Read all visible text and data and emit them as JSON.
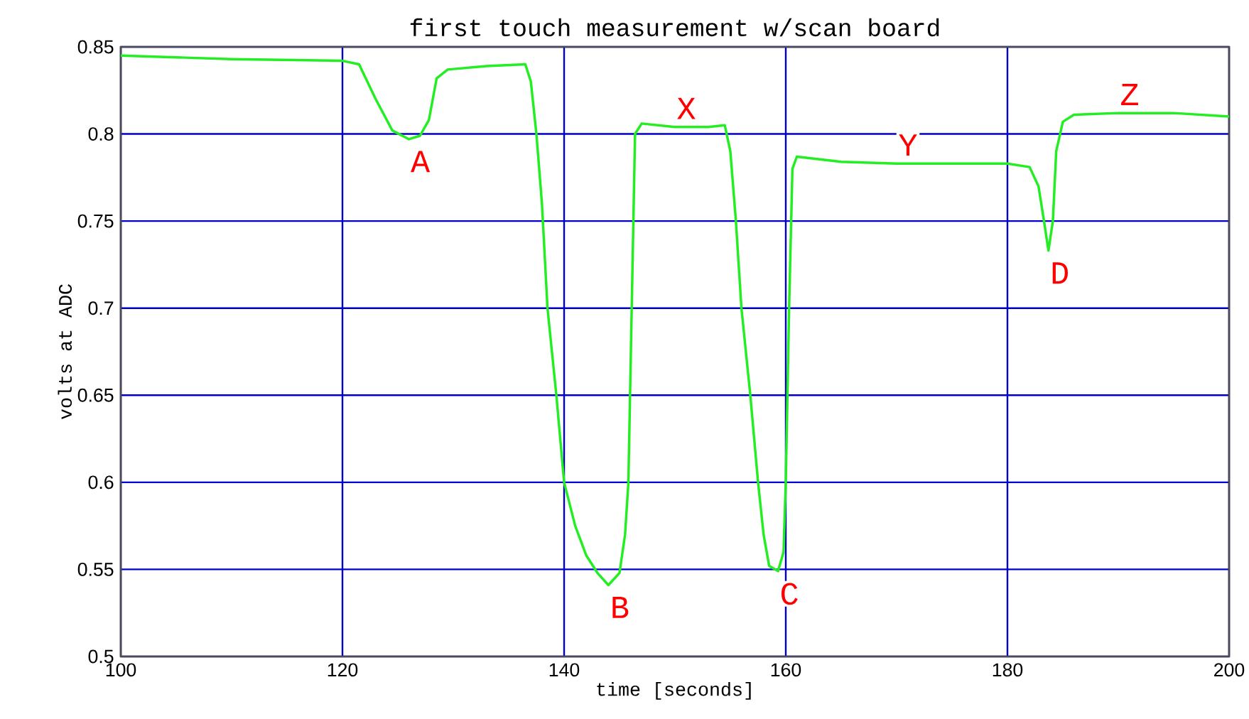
{
  "chart_data": {
    "type": "line",
    "title": "first touch measurement w/scan board",
    "xlabel": "time [seconds]",
    "ylabel": "volts at ADC",
    "xlim": [
      100,
      200
    ],
    "xticks": [
      100,
      120,
      140,
      160,
      180,
      200
    ],
    "ylim": [
      0.5,
      0.85
    ],
    "yticks": [
      0.5,
      0.55,
      0.6,
      0.65,
      0.7,
      0.75,
      0.8,
      0.85
    ],
    "grid": true,
    "marker": "none",
    "line_style": "solid",
    "series": [
      {
        "color": "#22ee22",
        "x": [
          100,
          110,
          120,
          121.5,
          123,
          124.5,
          126,
          127,
          127.8,
          128.5,
          129.5,
          133,
          136.5,
          137,
          137.5,
          138,
          138.5,
          139.3,
          140,
          141,
          142,
          143,
          144,
          145,
          145.5,
          145.8,
          146.1,
          146.4,
          147,
          150,
          153,
          154.5,
          155,
          155.5,
          156,
          156.8,
          157.5,
          158,
          158.5,
          159.3,
          159.8,
          160,
          160.3,
          160.6,
          161,
          165,
          170,
          175,
          180,
          182,
          182.8,
          183.3,
          183.7,
          184.1,
          184.4,
          185,
          186,
          190,
          195,
          200
        ],
        "values": [
          0.845,
          0.843,
          0.842,
          0.84,
          0.82,
          0.802,
          0.797,
          0.799,
          0.808,
          0.832,
          0.837,
          0.839,
          0.84,
          0.83,
          0.8,
          0.76,
          0.7,
          0.65,
          0.6,
          0.575,
          0.558,
          0.548,
          0.541,
          0.548,
          0.57,
          0.6,
          0.7,
          0.8,
          0.806,
          0.804,
          0.804,
          0.805,
          0.79,
          0.75,
          0.7,
          0.65,
          0.6,
          0.57,
          0.552,
          0.549,
          0.56,
          0.6,
          0.7,
          0.78,
          0.787,
          0.784,
          0.783,
          0.783,
          0.783,
          0.781,
          0.77,
          0.75,
          0.733,
          0.75,
          0.79,
          0.807,
          0.811,
          0.812,
          0.812,
          0.81
        ]
      }
    ],
    "annotations": [
      {
        "text": "A",
        "x": 126,
        "y": 0.797
      },
      {
        "text": "X",
        "x": 150,
        "y": 0.804
      },
      {
        "text": "B",
        "x": 144,
        "y": 0.541
      },
      {
        "text": "C",
        "x": 159.3,
        "y": 0.549
      },
      {
        "text": "Y",
        "x": 170,
        "y": 0.783
      },
      {
        "text": "D",
        "x": 183.7,
        "y": 0.733
      },
      {
        "text": "Z",
        "x": 190,
        "y": 0.812
      }
    ]
  }
}
